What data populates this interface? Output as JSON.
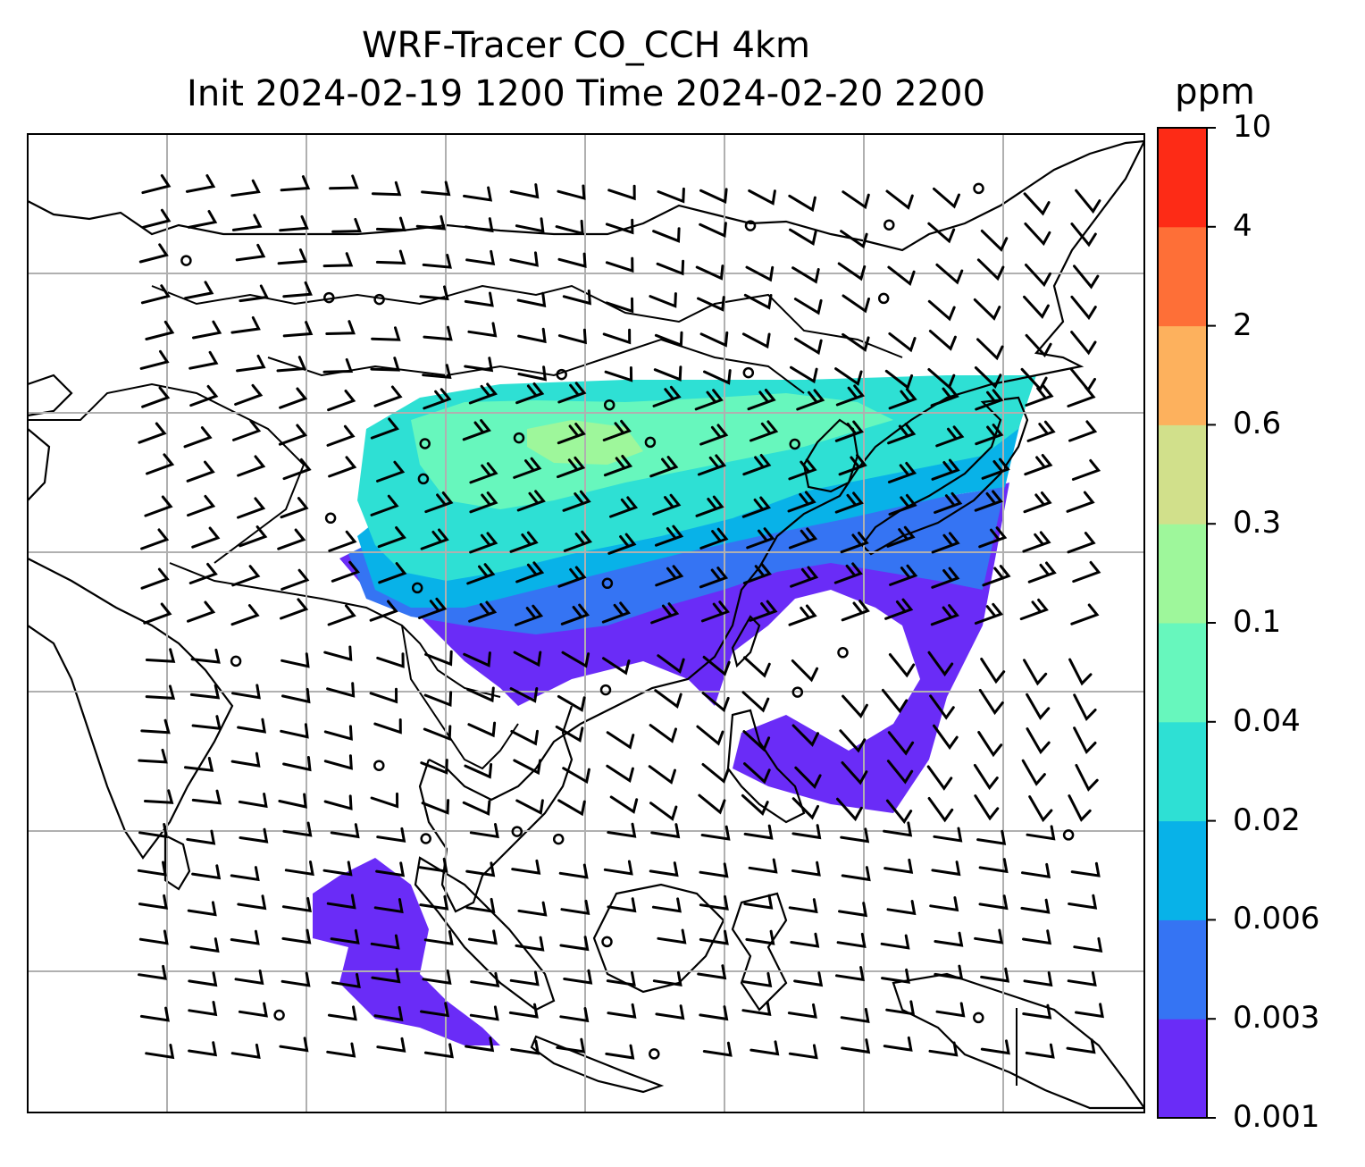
{
  "title": {
    "line1": "WRF-Tracer CO_CCH 4km",
    "line2": "Init 2024-02-19 1200 Time 2024-02-20 2200"
  },
  "colorbar": {
    "unit": "ppm",
    "levels": [
      "0.001",
      "0.003",
      "0.006",
      "0.02",
      "0.04",
      "0.1",
      "0.3",
      "0.6",
      "2",
      "4",
      "10"
    ],
    "colors": [
      "#6a2cf7",
      "#3574f3",
      "#08b2e8",
      "#2ee0d4",
      "#67f7bd",
      "#9ef79b",
      "#d1e08b",
      "#fdb15d",
      "#fe6f37",
      "#fd2b16"
    ]
  },
  "map": {
    "projection": "lat-lon grid",
    "gridlines": true,
    "ocean_color": "#ffffff",
    "coast_color": "#000000",
    "grid_color": "#b0b0b0",
    "layers": [
      "coastlines",
      "country-borders",
      "tracer-field",
      "wind-barbs"
    ]
  }
}
